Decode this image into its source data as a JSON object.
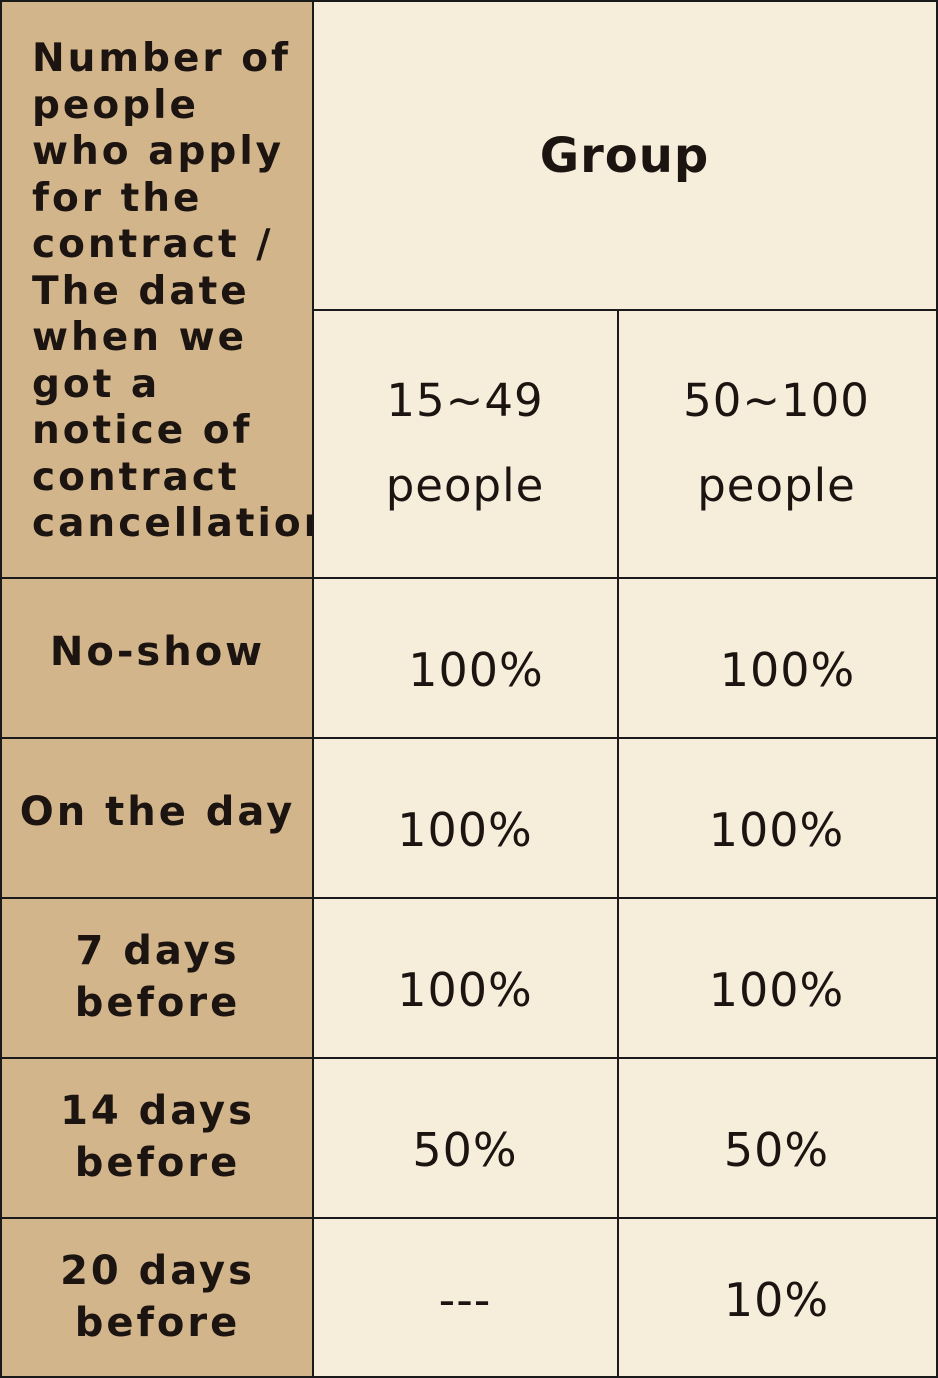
{
  "corner_label": "Number of\npeople\nwho apply\nfor the\ncontract  /\nThe date\nwhen we\ngot a\nnotice of\ncontract\ncancellation",
  "group_label": "Group",
  "columns": [
    {
      "range": "15~49",
      "unit": "people"
    },
    {
      "range": "50~100",
      "unit": "people"
    }
  ],
  "rows": [
    {
      "label": "No-show",
      "values": [
        "100%",
        "100%"
      ]
    },
    {
      "label": "On the day",
      "values": [
        "100%",
        "100%"
      ]
    },
    {
      "label": "7 days\nbefore",
      "values": [
        "100%",
        "100%"
      ]
    },
    {
      "label": "14 days\nbefore",
      "values": [
        "50%",
        "50%"
      ]
    },
    {
      "label": "20 days\nbefore",
      "values": [
        "---",
        "10%"
      ]
    }
  ]
}
